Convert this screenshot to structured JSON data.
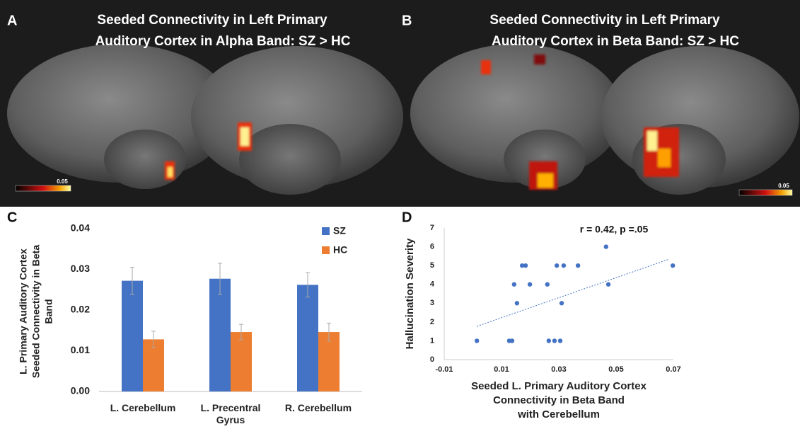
{
  "panel_labels": [
    "A",
    "B",
    "C",
    "D"
  ],
  "brain_panels": [
    {
      "title": [
        "Seeded Connectivity in Left Primary",
        "Auditory Cortex in Alpha Band: SZ > HC"
      ],
      "colorbar_label": "0.05"
    },
    {
      "title": [
        "Seeded Connectivity in Left Primary",
        "Auditory Cortex in Beta Band: SZ > HC"
      ],
      "colorbar_label": "0.05"
    }
  ],
  "chart_data": [
    {
      "type": "bar",
      "ylabel": [
        "L. Primary Auditory Cortex",
        "Seeded Connectivity in Beta",
        "Band"
      ],
      "categories": [
        "L. Cerebellum",
        "L. Precentral Gyrus",
        "R. Cerebellum"
      ],
      "series": [
        {
          "name": "SZ",
          "color": "#4472c4",
          "values": [
            0.0272,
            0.0277,
            0.0262
          ],
          "errors": [
            0.0033,
            0.0038,
            0.003
          ]
        },
        {
          "name": "HC",
          "color": "#ed7d31",
          "values": [
            0.0128,
            0.0146,
            0.0146
          ],
          "errors": [
            0.002,
            0.0019,
            0.0022
          ]
        }
      ],
      "ylim": [
        0,
        0.04
      ],
      "yticks": [
        {
          "value": 0,
          "label": "0.00"
        },
        0.01,
        0.02,
        0.03,
        0.04
      ],
      "legend": "upper right"
    },
    {
      "type": "scatter",
      "annotation": "r = 0.42, p =.05",
      "xlabel": [
        "Seeded L. Primary Auditory Cortex",
        "Connectivity in Beta Band",
        "with Cerebellum"
      ],
      "ylabel": "Hallucination Severity",
      "color": "#4472c4",
      "x": [
        0.0014,
        0.0127,
        0.0137,
        0.0144,
        0.0154,
        0.0172,
        0.0184,
        0.0199,
        0.026,
        0.0265,
        0.0285,
        0.0305,
        0.0293,
        0.0317,
        0.031,
        0.0367,
        0.0465,
        0.0473,
        0.0698
      ],
      "y": [
        1,
        1,
        1,
        4,
        3,
        5,
        5,
        4,
        4,
        1,
        1,
        1,
        5,
        5,
        3,
        5,
        6,
        4,
        5
      ],
      "trendline": {
        "x": [
          0.0014,
          0.0685
        ],
        "y": [
          1.77,
          5.34
        ]
      },
      "xlim": [
        -0.01,
        0.07
      ],
      "xticks": [
        -0.01,
        0.01,
        0.03,
        0.05,
        0.07
      ],
      "ylim": [
        0,
        7
      ],
      "yticks": [
        0,
        1,
        2,
        3,
        4,
        5,
        6,
        7
      ]
    }
  ]
}
